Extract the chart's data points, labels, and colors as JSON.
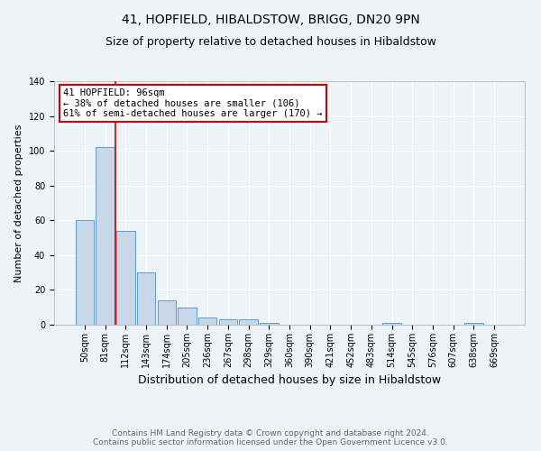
{
  "title": "41, HOPFIELD, HIBALDSTOW, BRIGG, DN20 9PN",
  "subtitle": "Size of property relative to detached houses in Hibaldstow",
  "xlabel": "Distribution of detached houses by size in Hibaldstow",
  "ylabel": "Number of detached properties",
  "footer_line1": "Contains HM Land Registry data © Crown copyright and database right 2024.",
  "footer_line2": "Contains public sector information licensed under the Open Government Licence v3.0.",
  "categories": [
    "50sqm",
    "81sqm",
    "112sqm",
    "143sqm",
    "174sqm",
    "205sqm",
    "236sqm",
    "267sqm",
    "298sqm",
    "329sqm",
    "360sqm",
    "390sqm",
    "421sqm",
    "452sqm",
    "483sqm",
    "514sqm",
    "545sqm",
    "576sqm",
    "607sqm",
    "638sqm",
    "669sqm"
  ],
  "values": [
    60,
    102,
    54,
    30,
    14,
    10,
    4,
    3,
    3,
    1,
    0,
    0,
    0,
    0,
    0,
    1,
    0,
    0,
    0,
    1,
    0
  ],
  "bar_color": "#c8d8e8",
  "bar_edge_color": "#5b9bd5",
  "background_color": "#eef3f8",
  "grid_color": "#ffffff",
  "annotation_line1": "41 HOPFIELD: 96sqm",
  "annotation_line2": "← 38% of detached houses are smaller (106)",
  "annotation_line3": "61% of semi-detached houses are larger (170) →",
  "annotation_box_color": "#ffffff",
  "annotation_box_edge": "#cc0000",
  "vline_color": "#cc0000",
  "ylim": [
    0,
    140
  ],
  "yticks": [
    0,
    20,
    40,
    60,
    80,
    100,
    120,
    140
  ],
  "title_fontsize": 10,
  "subtitle_fontsize": 9,
  "xlabel_fontsize": 9,
  "ylabel_fontsize": 8,
  "tick_fontsize": 7,
  "annotation_fontsize": 7.5,
  "footer_fontsize": 6.5
}
